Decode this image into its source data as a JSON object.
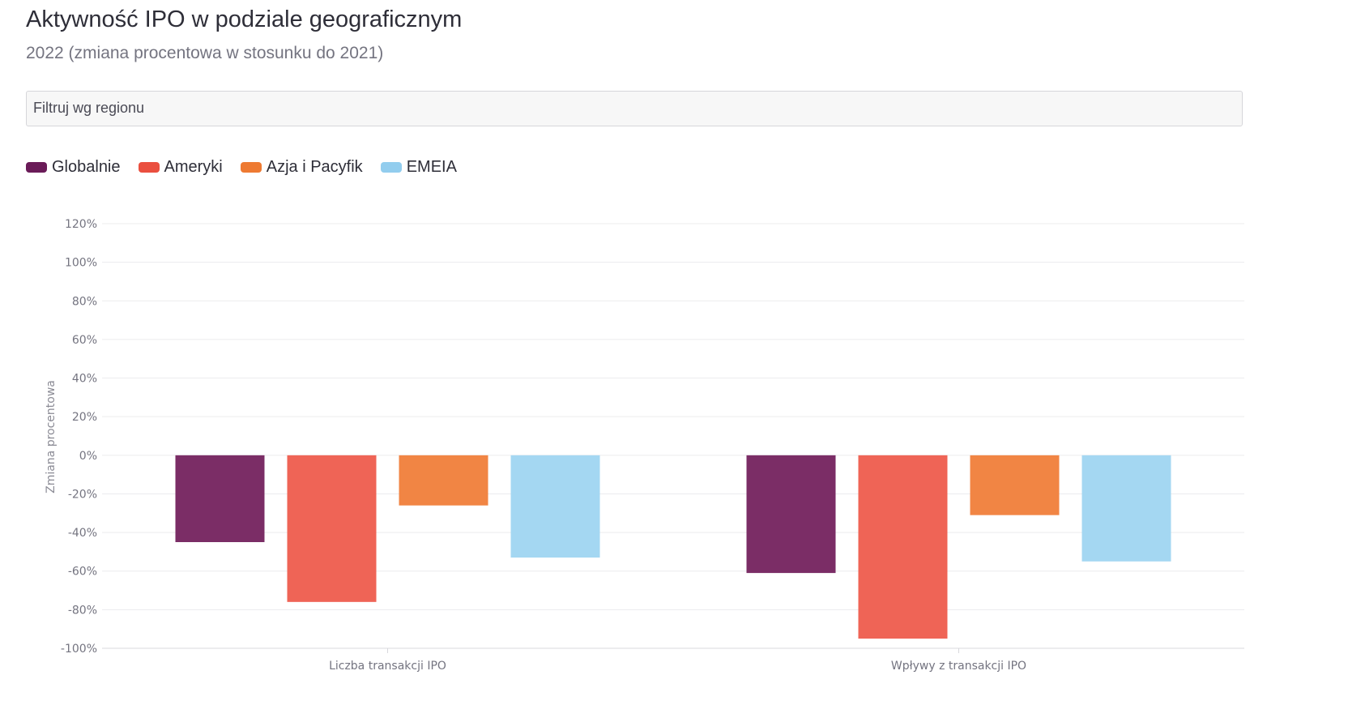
{
  "header": {
    "title": "Aktywność IPO w podziale geograficznym",
    "subtitle": "2022 (zmiana procentowa w stosunku do 2021)"
  },
  "filter": {
    "label": "Filtruj wg regionu"
  },
  "chart_data": {
    "type": "bar",
    "categories": [
      "Liczba transakcji IPO",
      "Wpływy z transakcji IPO"
    ],
    "series": [
      {
        "name": "Globalnie",
        "color": "#7b2d66",
        "legend_color": "#6a1b58",
        "values": [
          -45,
          -61
        ]
      },
      {
        "name": "Ameryki",
        "color": "#ef6456",
        "legend_color": "#ea4f3f",
        "values": [
          -76,
          -95
        ]
      },
      {
        "name": "Azja i Pacyfik",
        "color": "#f18544",
        "legend_color": "#ee7a32",
        "values": [
          -26,
          -31
        ]
      },
      {
        "name": "EMEIA",
        "color": "#a4d7f2",
        "legend_color": "#92cdee",
        "values": [
          -53,
          -55
        ]
      }
    ],
    "ylabel": "Zmiana procentowa",
    "xlabel": "",
    "ylim": [
      -100,
      120
    ],
    "yticks": [
      120,
      100,
      80,
      60,
      40,
      20,
      0,
      -20,
      -40,
      -60,
      -80,
      -100
    ],
    "tick_suffix": "%",
    "grid": true,
    "legend_position": "top-left"
  }
}
